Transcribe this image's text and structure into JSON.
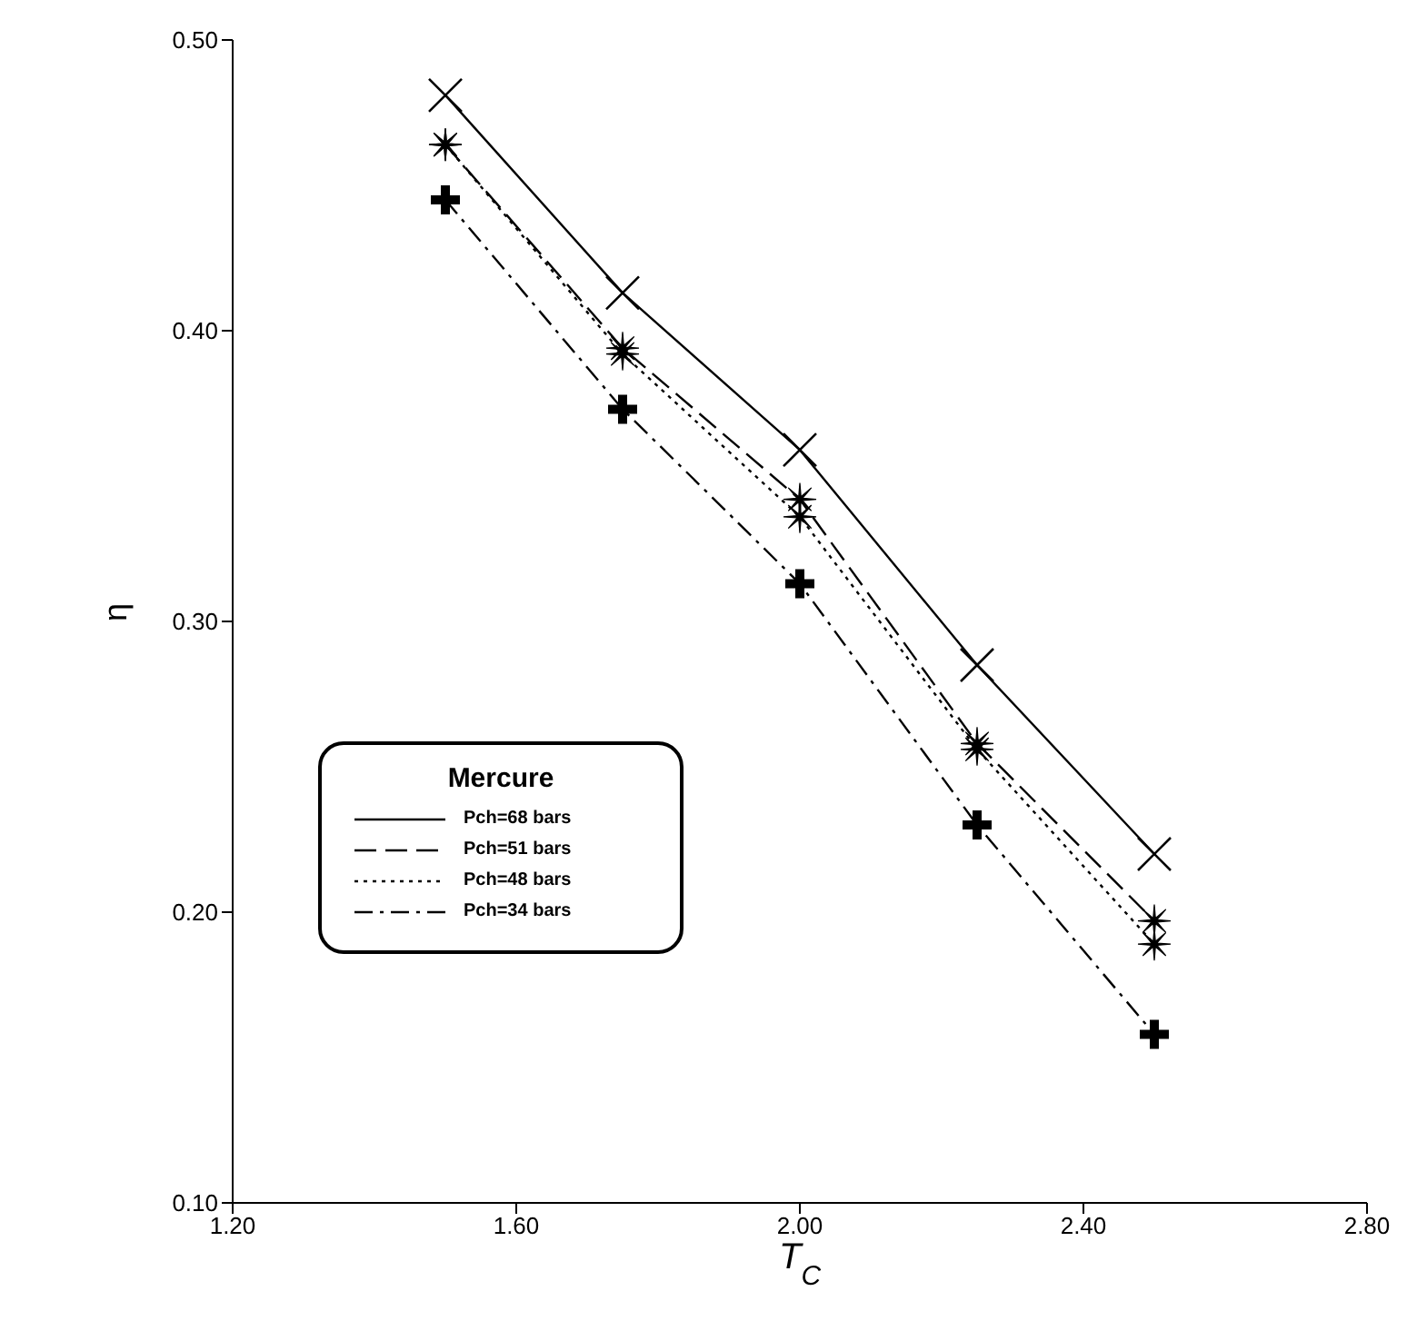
{
  "chart_data": {
    "type": "line",
    "xlabel": "T$_{C}$",
    "ylabel": "η",
    "legend_title": "Mercure",
    "legend": "bottom left",
    "grid": false,
    "x": [
      1.5,
      1.75,
      2.0,
      2.25,
      2.5
    ],
    "xlim": [
      1.2,
      2.8
    ],
    "xticks": [
      {
        "value": 1.2,
        "label": "1.20"
      },
      {
        "value": 1.6,
        "label": "1.60"
      },
      {
        "value": 2.0,
        "label": "2.00"
      },
      {
        "value": 2.4,
        "label": "2.40"
      },
      {
        "value": 2.8,
        "label": "2.80"
      }
    ],
    "ylim": [
      0.1,
      0.5
    ],
    "yticks": [
      {
        "value": 0.1,
        "label": "0.10"
      },
      {
        "value": 0.2,
        "label": "0.20"
      },
      {
        "value": 0.3,
        "label": "0.30"
      },
      {
        "value": 0.4,
        "label": "0.40"
      },
      {
        "value": 0.5,
        "label": "0.50"
      }
    ],
    "series": [
      {
        "name": "Pch=68 bars",
        "color": "#000000",
        "marker": "cross",
        "line_style": "solid",
        "values": [
          0.481,
          0.413,
          0.359,
          0.285,
          0.22
        ]
      },
      {
        "name": "Pch=51 bars",
        "color": "#000000",
        "marker": "star",
        "line_style": "dashed",
        "values": [
          0.464,
          0.394,
          0.342,
          0.258,
          0.197
        ]
      },
      {
        "name": "Pch=48 bars",
        "color": "#000000",
        "marker": "star",
        "line_style": "dotted",
        "values": [
          0.464,
          0.392,
          0.336,
          0.256,
          0.189
        ]
      },
      {
        "name": "Pch=34 bars",
        "color": "#000000",
        "marker": "plus",
        "line_style": "dashdot",
        "values": [
          0.445,
          0.373,
          0.313,
          0.23,
          0.158
        ]
      }
    ]
  }
}
